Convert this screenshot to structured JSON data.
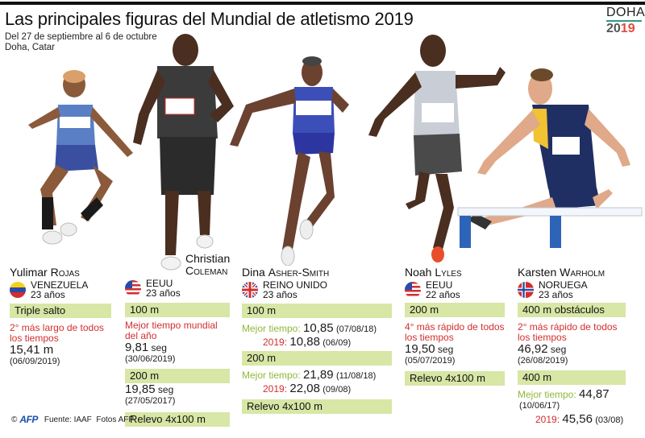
{
  "header": {
    "title": "Las principales figuras del Mundial de atletismo 2019",
    "dates": "Del 27 de septiembre al 6 de octubre",
    "location": "Doha, Catar"
  },
  "logo": {
    "line1": "DOHA",
    "year_a": "20",
    "year_b": "19"
  },
  "colors": {
    "band": "#d8e6a6",
    "red": "#d22e2e",
    "green": "#8fb83a",
    "logo_teal": "#2a9b8c",
    "logo_red": "#e04b3a"
  },
  "athletes": [
    {
      "first": "Yulimar",
      "last": "Rojas",
      "country": "VENEZUELA",
      "age": "23 años",
      "flag": "venezuela-flag-icon",
      "events": [
        {
          "band": "Triple salto",
          "note": "2° más largo de todos los tiempos",
          "value": "15,41 m",
          "date": "(06/09/2019)"
        }
      ]
    },
    {
      "first": "Christian",
      "last": "Coleman",
      "country": "EEUU",
      "age": "23 años",
      "flag": "usa-flag-icon",
      "events": [
        {
          "band": "100 m",
          "note": "Mejor tiempo mundial del año",
          "value": "9,81",
          "unit": "seg",
          "date": "(30/06/2019)"
        },
        {
          "band": "200 m",
          "value": "19,85",
          "unit": "seg",
          "date": "(27/05/2017)"
        },
        {
          "band": "Relevo 4x100 m"
        }
      ]
    },
    {
      "first": "Dina",
      "last": "Asher-Smith",
      "country": "REINO UNIDO",
      "age": "23 años",
      "flag": "uk-flag-icon",
      "events": [
        {
          "band": "100 m",
          "best_label": "Mejor tiempo:",
          "best": "10,85",
          "best_date": "(07/08/18)",
          "y_label": "2019:",
          "y_val": "10,88",
          "y_date": "(06/09)"
        },
        {
          "band": "200 m",
          "best_label": "Mejor tiempo:",
          "best": "21,89",
          "best_date": "(11/08/18)",
          "y_label": "2019:",
          "y_val": "22,08",
          "y_date": "(09/08)"
        },
        {
          "band": "Relevo 4x100 m"
        }
      ]
    },
    {
      "first": "Noah",
      "last": "Lyles",
      "country": "EEUU",
      "age": "22 años",
      "flag": "usa-flag-icon",
      "events": [
        {
          "band": "200 m",
          "note": "4° más rápido de todos los tiempos",
          "value": "19,50",
          "unit": "seg",
          "date": "(05/07/2019)"
        },
        {
          "band": "Relevo 4x100 m"
        }
      ]
    },
    {
      "first": "Karsten",
      "last": "Warholm",
      "country": "NORUEGA",
      "age": "23 años",
      "flag": "norway-flag-icon",
      "events": [
        {
          "band": "400 m obstáculos",
          "note": "2° más rápido de todos los tiempos",
          "value": "46,92",
          "unit": "seg",
          "date": "(26/08/2019)"
        },
        {
          "band": "400 m",
          "best_label": "Mejor tiempo:",
          "best": "44,87",
          "best_date": "(10/06/17)",
          "y_label": "2019:",
          "y_val": "45,56",
          "y_date": "(03/08)"
        }
      ]
    }
  ],
  "footer": {
    "copyright": "©",
    "agency": "AFP",
    "source": "Fuente: IAAF  Fotos AFP"
  }
}
